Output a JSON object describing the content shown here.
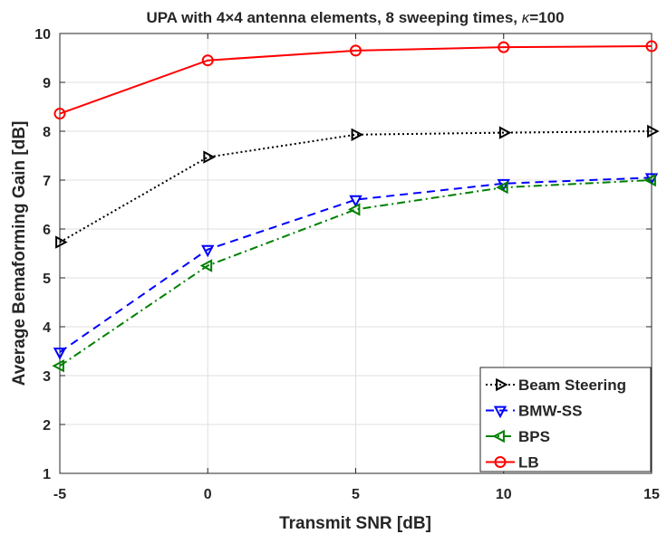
{
  "chart_data": {
    "type": "line",
    "title_parts": [
      "UPA with 4",
      "×",
      "4 antenna elements, 8 sweeping times, ",
      "κ",
      "=100"
    ],
    "xlabel": "Transmit SNR [dB]",
    "ylabel": "Average Bemaforming Gain [dB]",
    "x": [
      -5,
      0,
      5,
      10,
      15
    ],
    "xlim": [
      -5,
      15
    ],
    "ylim": [
      1,
      10
    ],
    "xticks": [
      "-5",
      "0",
      "5",
      "10",
      "15"
    ],
    "yticks": [
      "1",
      "2",
      "3",
      "4",
      "5",
      "6",
      "7",
      "8",
      "9",
      "10"
    ],
    "grid": true,
    "legend_position": "bottom-right",
    "series": [
      {
        "name": "Beam Steering",
        "values": [
          5.73,
          7.47,
          7.93,
          7.97,
          8.0
        ],
        "color": "#000000",
        "dash": "dotted",
        "marker": "triangle-right"
      },
      {
        "name": "BMW-SS",
        "values": [
          3.48,
          5.58,
          6.6,
          6.93,
          7.05
        ],
        "color": "#0000ff",
        "dash": "dashed",
        "marker": "triangle-down"
      },
      {
        "name": "BPS",
        "values": [
          3.2,
          5.25,
          6.4,
          6.85,
          7.0
        ],
        "color": "#008000",
        "dash": "dashdot",
        "marker": "triangle-left"
      },
      {
        "name": "LB",
        "values": [
          8.36,
          9.45,
          9.65,
          9.72,
          9.74
        ],
        "color": "#ff0000",
        "dash": "solid",
        "marker": "circle"
      }
    ]
  }
}
